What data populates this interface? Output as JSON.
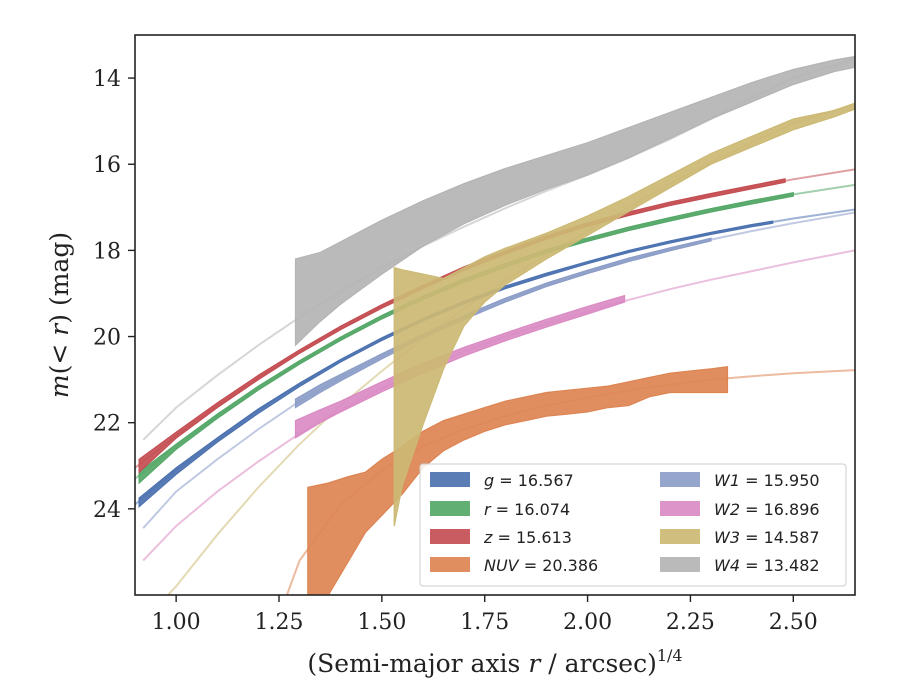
{
  "chart_data": {
    "type": "area",
    "title": "",
    "xlabel": "(Semi-major axis r / arcsec)",
    "xlabel_prefix": "(Semi-major axis ",
    "xlabel_var": "r",
    "xlabel_suffix": " / arcsec)",
    "xlabel_sup": "1/4",
    "ylabel": "m(< r) (mag)",
    "ylabel_var": "m",
    "ylabel_mid": "(< ",
    "ylabel_var2": "r",
    "ylabel_end": ") (mag)",
    "xlim": [
      0.9,
      2.65
    ],
    "ylim": [
      26,
      13
    ],
    "y_inverted": true,
    "xticks": [
      1.0,
      1.25,
      1.5,
      1.75,
      2.0,
      2.25,
      2.5
    ],
    "xtick_labels": [
      "1.00",
      "1.25",
      "1.50",
      "1.75",
      "2.00",
      "2.25",
      "2.50"
    ],
    "yticks": [
      14,
      16,
      18,
      20,
      22,
      24
    ],
    "ytick_labels": [
      "14",
      "16",
      "18",
      "20",
      "22",
      "24"
    ],
    "grid": false,
    "legend_position": "lower-right",
    "series": [
      {
        "name": "g = 16.567",
        "band": "g",
        "value": "16.567",
        "color": "#4c72b0",
        "model_x": [
          0.9,
          1.0,
          1.1,
          1.2,
          1.3,
          1.4,
          1.5,
          1.6,
          1.7,
          1.8,
          1.9,
          2.0,
          2.1,
          2.2,
          2.3,
          2.4,
          2.5,
          2.65
        ],
        "model_y": [
          23.9,
          23.1,
          22.4,
          21.7,
          21.1,
          20.55,
          20.05,
          19.6,
          19.2,
          18.85,
          18.55,
          18.28,
          18.02,
          17.8,
          17.6,
          17.42,
          17.26,
          17.05
        ],
        "band_x": [
          0.91,
          1.0,
          1.1,
          1.2,
          1.3,
          1.4,
          1.5,
          1.6,
          1.7,
          1.8,
          1.9,
          2.0,
          2.1,
          2.2,
          2.3,
          2.4,
          2.45
        ],
        "band_upper": [
          23.75,
          23.05,
          22.35,
          21.68,
          21.08,
          20.53,
          20.03,
          19.58,
          19.18,
          18.83,
          18.53,
          18.26,
          18.0,
          17.78,
          17.58,
          17.4,
          17.32
        ],
        "band_lower": [
          23.95,
          23.2,
          22.45,
          21.78,
          21.16,
          20.59,
          20.09,
          19.64,
          19.24,
          18.89,
          18.59,
          18.31,
          18.05,
          17.83,
          17.63,
          17.45,
          17.37
        ]
      },
      {
        "name": "r = 16.074",
        "band": "r",
        "value": "16.074",
        "color": "#55a868",
        "model_x": [
          0.9,
          1.0,
          1.1,
          1.2,
          1.3,
          1.4,
          1.5,
          1.6,
          1.7,
          1.8,
          1.9,
          2.0,
          2.1,
          2.2,
          2.3,
          2.4,
          2.5,
          2.65
        ],
        "model_y": [
          23.3,
          22.55,
          21.85,
          21.2,
          20.6,
          20.05,
          19.55,
          19.1,
          18.7,
          18.35,
          18.02,
          17.75,
          17.5,
          17.28,
          17.07,
          16.88,
          16.7,
          16.48
        ],
        "band_x": [
          0.91,
          1.0,
          1.1,
          1.2,
          1.3,
          1.4,
          1.5,
          1.6,
          1.7,
          1.8,
          1.9,
          2.0,
          2.1,
          2.2,
          2.3,
          2.4,
          2.5
        ],
        "band_upper": [
          23.15,
          22.5,
          21.8,
          21.15,
          20.56,
          20.01,
          19.51,
          19.06,
          18.66,
          18.31,
          17.98,
          17.71,
          17.46,
          17.24,
          17.03,
          16.84,
          16.66
        ],
        "band_lower": [
          23.4,
          22.62,
          21.9,
          21.24,
          20.64,
          20.09,
          19.59,
          19.14,
          18.74,
          18.39,
          18.06,
          17.79,
          17.54,
          17.32,
          17.11,
          16.92,
          16.74
        ]
      },
      {
        "name": "z = 15.613",
        "band": "z",
        "value": "15.613",
        "color": "#c44e52",
        "model_x": [
          0.9,
          1.0,
          1.1,
          1.2,
          1.3,
          1.4,
          1.5,
          1.6,
          1.7,
          1.8,
          1.9,
          2.0,
          2.1,
          2.2,
          2.3,
          2.4,
          2.5,
          2.65
        ],
        "model_y": [
          23.05,
          22.3,
          21.6,
          20.95,
          20.35,
          19.8,
          19.3,
          18.85,
          18.42,
          18.05,
          17.7,
          17.4,
          17.15,
          16.92,
          16.72,
          16.53,
          16.35,
          16.12
        ],
        "band_x": [
          0.91,
          1.0,
          1.1,
          1.2,
          1.3,
          1.4,
          1.5,
          1.6,
          1.7,
          1.8,
          1.9,
          2.0,
          2.1,
          2.2,
          2.3,
          2.4,
          2.48
        ],
        "band_upper": [
          22.85,
          22.22,
          21.54,
          20.9,
          20.31,
          19.76,
          19.26,
          18.81,
          18.38,
          18.01,
          17.66,
          17.36,
          17.11,
          16.88,
          16.68,
          16.49,
          16.34
        ],
        "band_lower": [
          23.15,
          22.36,
          21.65,
          21.0,
          20.39,
          19.84,
          19.34,
          18.89,
          18.46,
          18.09,
          17.74,
          17.44,
          17.19,
          16.96,
          16.76,
          16.57,
          16.42
        ]
      },
      {
        "name": "NUV = 20.386",
        "band": "NUV",
        "value": "20.386",
        "color": "#dd8452",
        "model_x": [
          1.25,
          1.3,
          1.4,
          1.5,
          1.6,
          1.7,
          1.8,
          1.9,
          2.0,
          2.1,
          2.2,
          2.3,
          2.4,
          2.5,
          2.65
        ],
        "model_y": [
          26.5,
          25.2,
          23.9,
          23.1,
          22.55,
          22.15,
          21.85,
          21.6,
          21.42,
          21.25,
          21.12,
          21.0,
          20.92,
          20.85,
          20.78
        ],
        "band_x": [
          1.32,
          1.37,
          1.42,
          1.46,
          1.5,
          1.55,
          1.6,
          1.65,
          1.7,
          1.75,
          1.8,
          1.85,
          1.9,
          1.95,
          2.0,
          2.05,
          2.1,
          2.15,
          2.2,
          2.25,
          2.3,
          2.34
        ],
        "band_upper": [
          23.5,
          23.4,
          23.25,
          23.15,
          22.85,
          22.55,
          22.2,
          21.95,
          21.8,
          21.65,
          21.5,
          21.4,
          21.3,
          21.25,
          21.2,
          21.15,
          21.05,
          20.95,
          20.85,
          20.8,
          20.75,
          20.7
        ],
        "band_lower": [
          26.5,
          26.0,
          25.2,
          24.55,
          24.15,
          23.65,
          23.05,
          22.65,
          22.4,
          22.2,
          22.05,
          21.95,
          21.85,
          21.8,
          21.75,
          21.65,
          21.6,
          21.4,
          21.3,
          21.3,
          21.3,
          21.3
        ]
      },
      {
        "name": "W1 = 15.950",
        "band": "W1",
        "value": "15.950",
        "color": "#8c9dc8",
        "model_x": [
          0.92,
          1.0,
          1.1,
          1.2,
          1.3,
          1.4,
          1.5,
          1.6,
          1.7,
          1.8,
          1.9,
          2.0,
          2.1,
          2.2,
          2.3,
          2.4,
          2.5,
          2.65
        ],
        "model_y": [
          24.45,
          23.6,
          22.85,
          22.15,
          21.5,
          20.95,
          20.45,
          19.98,
          19.55,
          19.15,
          18.8,
          18.5,
          18.22,
          17.98,
          17.75,
          17.55,
          17.37,
          17.12
        ],
        "band_x": [
          1.29,
          1.35,
          1.4,
          1.5,
          1.6,
          1.7,
          1.8,
          1.9,
          2.0,
          2.1,
          2.2,
          2.3
        ],
        "band_upper": [
          21.45,
          21.12,
          20.88,
          20.4,
          19.94,
          19.51,
          19.11,
          18.76,
          18.46,
          18.18,
          17.94,
          17.72
        ],
        "band_lower": [
          21.65,
          21.3,
          21.03,
          20.52,
          20.03,
          19.6,
          19.2,
          18.84,
          18.54,
          18.26,
          18.01,
          17.78
        ]
      },
      {
        "name": "W2 = 16.896",
        "band": "W2",
        "value": "16.896",
        "color": "#da8bc3",
        "model_x": [
          0.92,
          1.0,
          1.1,
          1.2,
          1.3,
          1.4,
          1.5,
          1.6,
          1.7,
          1.8,
          1.9,
          2.0,
          2.1,
          2.2,
          2.3,
          2.4,
          2.5,
          2.65
        ],
        "model_y": [
          25.2,
          24.4,
          23.6,
          22.9,
          22.25,
          21.7,
          21.2,
          20.75,
          20.35,
          20.0,
          19.7,
          19.42,
          19.15,
          18.9,
          18.68,
          18.48,
          18.28,
          18.0
        ],
        "band_x": [
          1.29,
          1.35,
          1.4,
          1.5,
          1.6,
          1.7,
          1.8,
          1.9,
          2.0,
          2.09
        ],
        "band_upper": [
          21.95,
          21.7,
          21.5,
          21.05,
          20.62,
          20.25,
          19.92,
          19.6,
          19.3,
          19.05
        ],
        "band_lower": [
          22.35,
          22.0,
          21.75,
          21.28,
          20.85,
          20.45,
          20.1,
          19.78,
          19.48,
          19.2
        ]
      },
      {
        "name": "W3 = 14.587",
        "band": "W3",
        "value": "14.587",
        "color": "#ccb974",
        "model_x": [
          0.98,
          1.0,
          1.1,
          1.2,
          1.3,
          1.4,
          1.5,
          1.6,
          1.7,
          1.8,
          1.9,
          2.0,
          2.1,
          2.2,
          2.3,
          2.4,
          2.5,
          2.65
        ],
        "model_y": [
          26.0,
          25.8,
          24.6,
          23.5,
          22.5,
          21.6,
          20.8,
          20.05,
          19.35,
          18.7,
          18.1,
          17.55,
          17.0,
          16.45,
          15.95,
          15.5,
          15.05,
          14.6
        ],
        "band_x": [
          1.53,
          1.55,
          1.6,
          1.65,
          1.7,
          1.75,
          1.8,
          1.9,
          2.0,
          2.1,
          2.2,
          2.3,
          2.4,
          2.5,
          2.6,
          2.65
        ],
        "band_upper": [
          18.4,
          18.45,
          18.55,
          18.65,
          18.4,
          18.15,
          17.95,
          17.6,
          17.2,
          16.75,
          16.25,
          15.75,
          15.35,
          14.95,
          14.75,
          14.58
        ],
        "band_lower": [
          24.4,
          23.45,
          22.05,
          20.75,
          19.75,
          19.2,
          18.8,
          18.2,
          17.65,
          17.1,
          16.55,
          16.0,
          15.6,
          15.2,
          14.9,
          14.72
        ]
      },
      {
        "name": "W4 = 13.482",
        "band": "W4",
        "value": "13.482",
        "color": "#b4b4b4",
        "model_x": [
          0.92,
          1.0,
          1.1,
          1.2,
          1.3,
          1.4,
          1.5,
          1.6,
          1.7,
          1.8,
          1.9,
          2.0,
          2.1,
          2.2,
          2.3,
          2.4,
          2.5,
          2.65
        ],
        "model_y": [
          22.4,
          21.65,
          20.9,
          20.2,
          19.55,
          18.95,
          18.4,
          17.9,
          17.45,
          17.02,
          16.62,
          16.25,
          15.85,
          15.42,
          14.95,
          14.45,
          14.0,
          13.55
        ],
        "band_x": [
          1.29,
          1.35,
          1.4,
          1.5,
          1.6,
          1.7,
          1.8,
          1.9,
          2.0,
          2.1,
          2.2,
          2.3,
          2.4,
          2.5,
          2.6,
          2.65
        ],
        "band_upper": [
          18.2,
          18.05,
          17.8,
          17.3,
          16.85,
          16.45,
          16.1,
          15.8,
          15.5,
          15.15,
          14.8,
          14.45,
          14.1,
          13.8,
          13.58,
          13.5
        ],
        "band_lower": [
          20.2,
          19.65,
          19.25,
          18.55,
          17.9,
          17.38,
          16.95,
          16.58,
          16.25,
          15.85,
          15.4,
          14.95,
          14.55,
          14.15,
          13.85,
          13.75
        ]
      }
    ]
  }
}
